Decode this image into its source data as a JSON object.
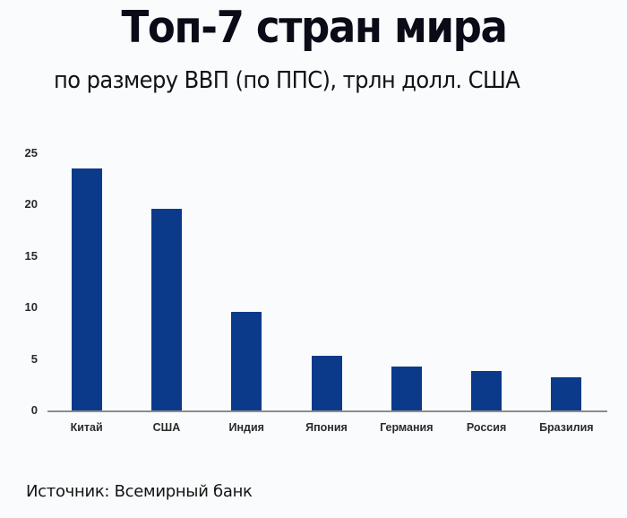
{
  "header": {
    "title": "Топ-7 стран мира",
    "subtitle": "по размеру ВВП (по ППС), трлн долл. США"
  },
  "footer": {
    "source": "Источник:  Всемирный банк"
  },
  "colors": {
    "bar": "#0b3a8a",
    "axis": "#8c8c8c",
    "background": "#f9fbfc"
  },
  "chart_data": {
    "type": "bar",
    "title": "Топ-7 стран мира",
    "subtitle": "по размеру ВВП (по ППС), трлн долл. США",
    "xlabel": "",
    "ylabel": "трлн долл. США",
    "categories": [
      "Китай",
      "США",
      "Индия",
      "Япония",
      "Германия",
      "Россия",
      "Бразилия"
    ],
    "values": [
      23.5,
      19.6,
      9.6,
      5.3,
      4.3,
      3.8,
      3.2
    ],
    "yticks": [
      "0",
      "5",
      "10",
      "15",
      "20",
      "25"
    ],
    "ylim": [
      0,
      25
    ],
    "grid": false,
    "legend": null,
    "source": "Всемирный банк"
  }
}
